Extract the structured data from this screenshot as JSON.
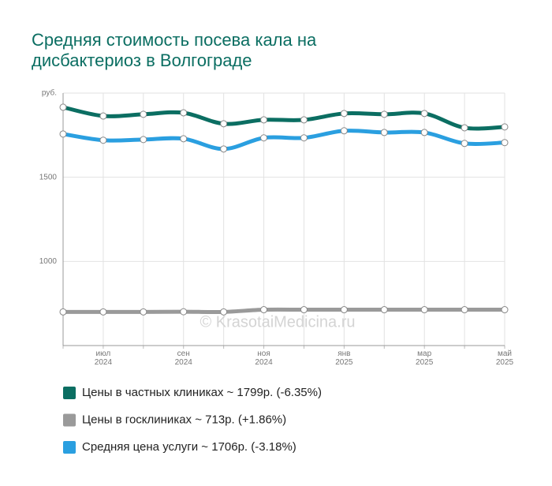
{
  "chart_data": {
    "type": "line",
    "title": "Средняя стоимость посева кала на дисбактериоз в Волгограде",
    "watermark": "© KrasotaiMedicina.ru",
    "categories": [
      null,
      "июл 2024",
      null,
      "сен 2024",
      null,
      "ноя 2024",
      null,
      "янв 2025",
      null,
      "мар 2025",
      null,
      "май 2025"
    ],
    "series": [
      {
        "name": "Цены в частных клиниках ~ 1799р. (-6.35%)",
        "color": "#0b6e62",
        "values": [
          1916,
          1864,
          1874,
          1883,
          1818,
          1841,
          1841,
          1879,
          1874,
          1879,
          1794,
          1799
        ]
      },
      {
        "name": "Цены в госклиниках ~ 713р. (+1.86%)",
        "color": "#9a9a9a",
        "values": [
          700,
          700,
          700,
          701,
          700,
          713,
          713,
          713,
          713,
          713,
          713,
          713
        ]
      },
      {
        "name": "Средняя цена услуги ~ 1706р. (-3.18%)",
        "color": "#2a9fe0",
        "values": [
          1757,
          1720,
          1724,
          1729,
          1668,
          1734,
          1734,
          1776,
          1766,
          1766,
          1701,
          1706
        ]
      }
    ],
    "ylim": [
      500,
      2000
    ],
    "yticks": [
      1000,
      1500,
      {
        "value": 2000,
        "label": "руб."
      }
    ],
    "grid": true
  }
}
